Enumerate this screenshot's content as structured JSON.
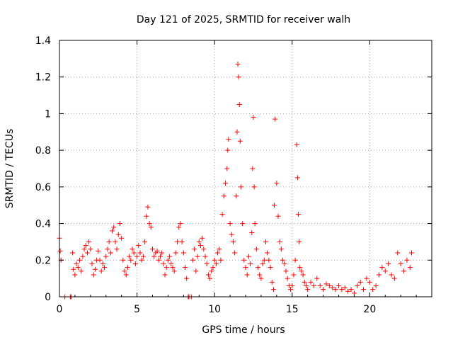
{
  "chart_data": {
    "type": "scatter",
    "title": "Day 121 of 2025, SRMTID for receiver walh",
    "xlabel": "GPS time / hours",
    "ylabel": "SRMTID / TECUs",
    "xlim": [
      0,
      24
    ],
    "ylim": [
      0,
      1.4
    ],
    "grid": true,
    "marker": "+",
    "x_ticks": [
      0,
      5,
      10,
      15,
      20
    ],
    "x_tick_labels": [
      "0",
      "5",
      "10",
      "15",
      "20"
    ],
    "y_ticks": [
      0,
      0.2,
      0.4,
      0.6,
      0.8,
      1.0,
      1.2,
      1.4
    ],
    "y_tick_labels": [
      "0",
      "0.2",
      "0.4",
      "0.6",
      "0.8",
      "1",
      "1.2",
      "1.4"
    ],
    "colors": {
      "series": "#ff0000",
      "grid": "#a0a0a0",
      "axis": "#000000"
    },
    "series": [
      {
        "name": "SRMTID",
        "x": [
          0.0,
          0.05,
          0.1,
          0.35,
          0.7,
          0.75,
          0.85,
          0.9,
          1.0,
          1.1,
          1.2,
          1.3,
          1.4,
          1.5,
          1.6,
          1.7,
          1.8,
          1.9,
          2.0,
          2.1,
          2.2,
          2.3,
          2.4,
          2.5,
          2.6,
          2.7,
          2.8,
          2.9,
          3.0,
          3.1,
          3.2,
          3.3,
          3.4,
          3.5,
          3.6,
          3.7,
          3.8,
          3.9,
          4.0,
          4.1,
          4.2,
          4.3,
          4.4,
          4.5,
          4.6,
          4.7,
          4.8,
          4.9,
          5.0,
          5.1,
          5.2,
          5.3,
          5.4,
          5.5,
          5.6,
          5.7,
          5.8,
          5.9,
          6.0,
          6.1,
          6.2,
          6.3,
          6.4,
          6.5,
          6.6,
          6.7,
          6.8,
          6.9,
          7.0,
          7.1,
          7.2,
          7.3,
          7.4,
          7.5,
          7.6,
          7.7,
          7.8,
          7.9,
          8.0,
          8.1,
          8.2,
          8.3,
          8.35,
          8.5,
          8.6,
          8.7,
          8.8,
          8.9,
          9.0,
          9.1,
          9.2,
          9.3,
          9.4,
          9.5,
          9.6,
          9.7,
          9.8,
          9.9,
          10.0,
          10.1,
          10.2,
          10.3,
          10.4,
          10.5,
          10.6,
          10.7,
          10.8,
          10.85,
          10.9,
          11.0,
          11.1,
          11.2,
          11.3,
          11.4,
          11.45,
          11.5,
          11.55,
          11.6,
          11.65,
          11.7,
          11.8,
          11.9,
          12.0,
          12.1,
          12.2,
          12.3,
          12.4,
          12.45,
          12.5,
          12.55,
          12.6,
          12.7,
          12.8,
          12.9,
          13.0,
          13.1,
          13.2,
          13.3,
          13.4,
          13.5,
          13.6,
          13.7,
          13.8,
          13.85,
          13.9,
          14.0,
          14.1,
          14.2,
          14.3,
          14.4,
          14.5,
          14.6,
          14.7,
          14.8,
          14.9,
          15.0,
          15.1,
          15.2,
          15.3,
          15.35,
          15.4,
          15.45,
          15.5,
          15.6,
          15.7,
          15.8,
          15.9,
          16.0,
          16.2,
          16.4,
          16.6,
          16.8,
          17.0,
          17.2,
          17.4,
          17.6,
          17.8,
          18.0,
          18.2,
          18.4,
          18.6,
          18.8,
          19.0,
          19.2,
          19.4,
          19.6,
          19.8,
          20.0,
          20.2,
          20.4,
          20.6,
          20.8,
          21.0,
          21.2,
          21.4,
          21.6,
          21.8,
          22.0,
          22.2,
          22.4,
          22.6,
          22.7
        ],
        "y": [
          0.32,
          0.25,
          0.2,
          0.0,
          0.0,
          0.0,
          0.24,
          0.15,
          0.12,
          0.18,
          0.16,
          0.2,
          0.14,
          0.22,
          0.26,
          0.28,
          0.24,
          0.3,
          0.26,
          0.18,
          0.12,
          0.15,
          0.2,
          0.25,
          0.2,
          0.14,
          0.18,
          0.16,
          0.22,
          0.26,
          0.3,
          0.24,
          0.36,
          0.38,
          0.3,
          0.26,
          0.34,
          0.4,
          0.32,
          0.2,
          0.14,
          0.12,
          0.16,
          0.22,
          0.2,
          0.26,
          0.24,
          0.18,
          0.22,
          0.28,
          0.24,
          0.2,
          0.22,
          0.3,
          0.44,
          0.49,
          0.4,
          0.38,
          0.26,
          0.22,
          0.24,
          0.25,
          0.2,
          0.22,
          0.24,
          0.18,
          0.12,
          0.16,
          0.2,
          0.22,
          0.18,
          0.16,
          0.14,
          0.24,
          0.3,
          0.38,
          0.4,
          0.3,
          0.24,
          0.16,
          0.1,
          0.0,
          0.0,
          0.0,
          0.2,
          0.26,
          0.14,
          0.22,
          0.3,
          0.28,
          0.32,
          0.26,
          0.22,
          0.18,
          0.12,
          0.1,
          0.14,
          0.16,
          0.2,
          0.18,
          0.24,
          0.26,
          0.2,
          0.45,
          0.55,
          0.62,
          0.7,
          0.8,
          0.86,
          0.4,
          0.34,
          0.3,
          0.24,
          0.55,
          0.9,
          1.27,
          1.2,
          1.05,
          0.85,
          0.6,
          0.4,
          0.2,
          0.16,
          0.12,
          0.22,
          0.18,
          0.35,
          0.7,
          0.98,
          0.6,
          0.4,
          0.26,
          0.16,
          0.12,
          0.1,
          0.18,
          0.2,
          0.3,
          0.24,
          0.2,
          0.16,
          0.08,
          0.04,
          0.5,
          0.97,
          0.62,
          0.44,
          0.3,
          0.26,
          0.2,
          0.18,
          0.14,
          0.1,
          0.06,
          0.04,
          0.06,
          0.12,
          0.2,
          0.83,
          0.65,
          0.45,
          0.3,
          0.16,
          0.14,
          0.12,
          0.08,
          0.06,
          0.04,
          0.08,
          0.06,
          0.1,
          0.06,
          0.04,
          0.07,
          0.06,
          0.05,
          0.04,
          0.06,
          0.04,
          0.05,
          0.03,
          0.04,
          0.02,
          0.06,
          0.08,
          0.04,
          0.1,
          0.08,
          0.04,
          0.06,
          0.12,
          0.16,
          0.14,
          0.18,
          0.12,
          0.1,
          0.24,
          0.18,
          0.14,
          0.2,
          0.16,
          0.24
        ]
      }
    ]
  }
}
